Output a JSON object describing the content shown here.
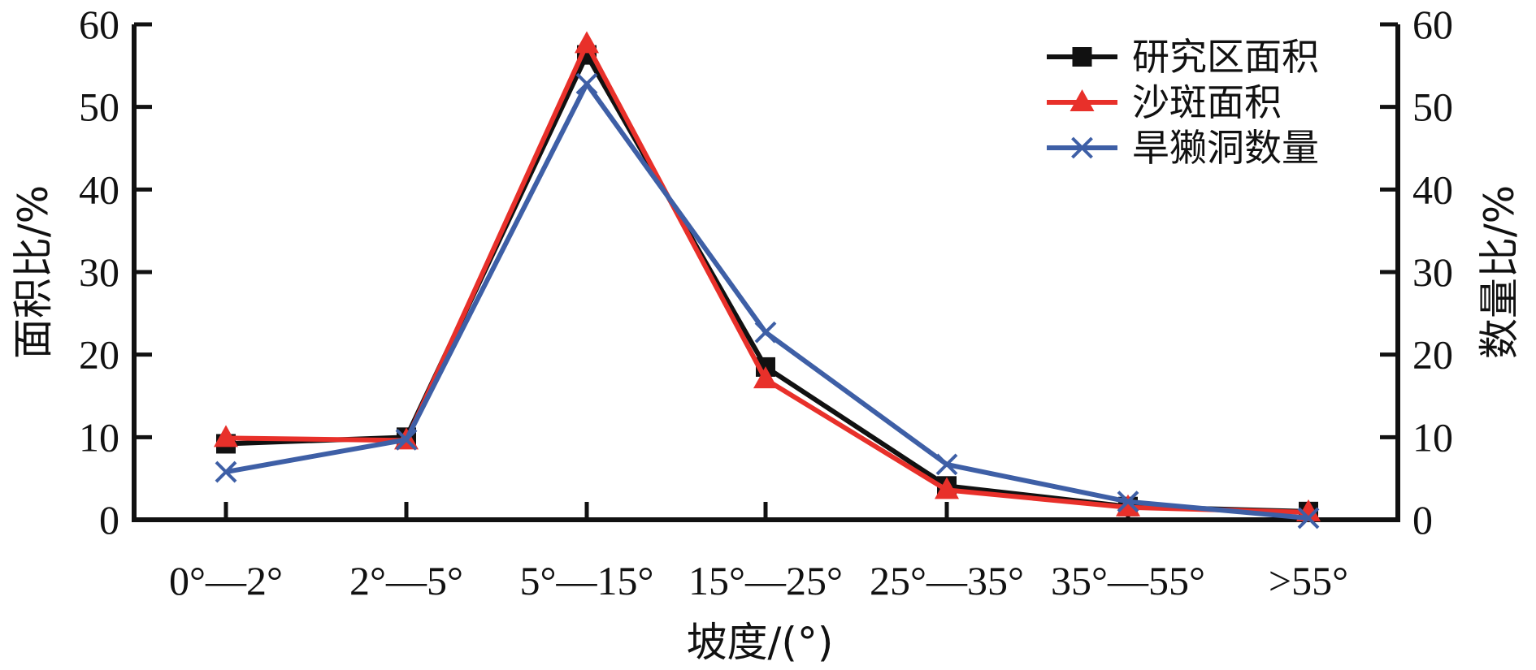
{
  "chart_data": {
    "type": "line",
    "categories": [
      "0°—2°",
      "2°—5°",
      "5°—15°",
      "15°—25°",
      "25°—35°",
      "35°—55°",
      ">55°"
    ],
    "xlabel": "坡度/(°)",
    "ylabel_left": "面积比/%",
    "ylabel_right": "数量比/%",
    "ylim": [
      0,
      60
    ],
    "yticks": [
      0,
      10,
      20,
      30,
      40,
      50,
      60
    ],
    "grid": false,
    "legend_position": "top-right",
    "series": [
      {
        "name": "研究区面积",
        "marker": "square",
        "color": "#111111",
        "values": [
          9.2,
          10.0,
          56.3,
          18.5,
          4.1,
          1.6,
          1.0
        ]
      },
      {
        "name": "沙斑面积",
        "marker": "triangle",
        "color": "#e8302a",
        "values": [
          9.9,
          9.6,
          57.6,
          17.0,
          3.6,
          1.5,
          0.9
        ]
      },
      {
        "name": "旱獭洞数量",
        "marker": "x",
        "color": "#3e5fa6",
        "values": [
          5.8,
          9.7,
          52.8,
          22.7,
          6.7,
          2.2,
          0.2
        ]
      }
    ]
  }
}
